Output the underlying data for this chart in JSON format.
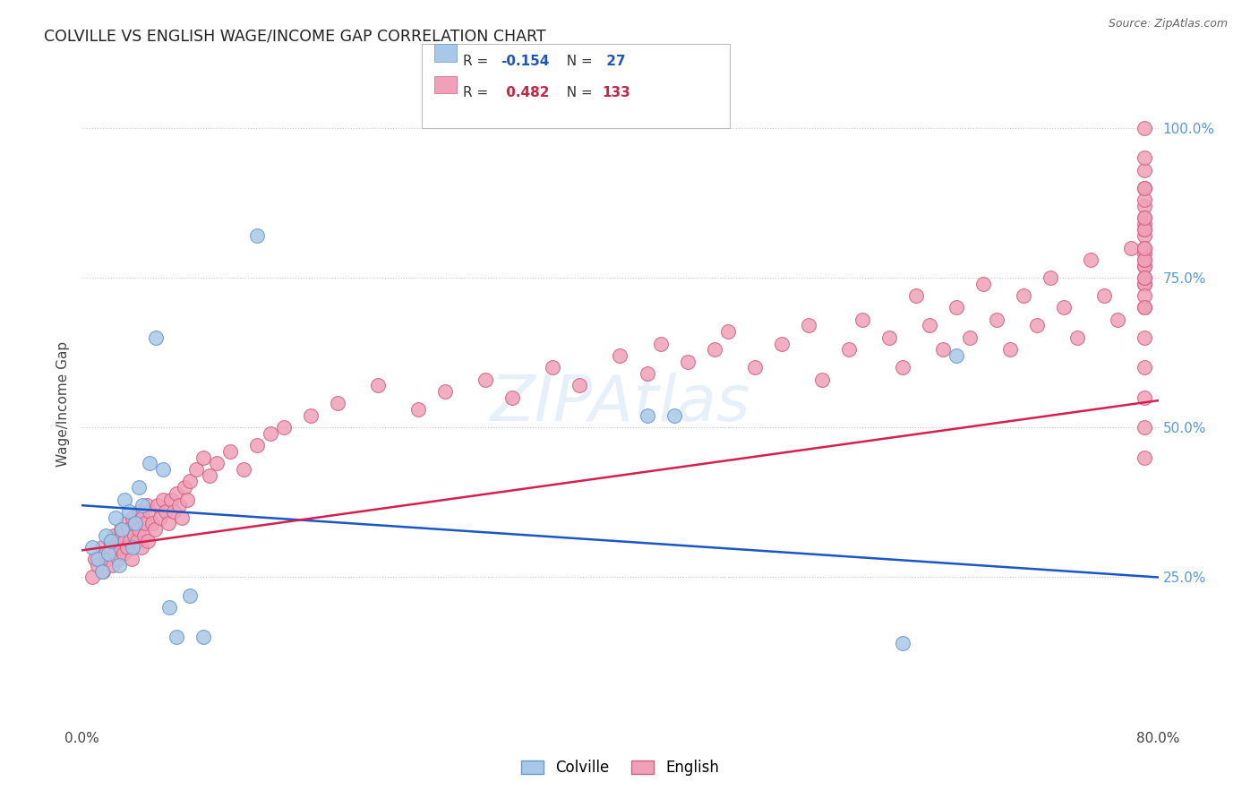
{
  "title": "COLVILLE VS ENGLISH WAGE/INCOME GAP CORRELATION CHART",
  "source": "Source: ZipAtlas.com",
  "ylabel": "Wage/Income Gap",
  "ytick_labels": [
    "25.0%",
    "50.0%",
    "75.0%",
    "100.0%"
  ],
  "ytick_values": [
    0.25,
    0.5,
    0.75,
    1.0
  ],
  "xlim": [
    0.0,
    0.8
  ],
  "ylim": [
    0.0,
    1.08
  ],
  "colville_color": "#a8c8e8",
  "colville_edge": "#6898c8",
  "english_color": "#f0a0b8",
  "english_edge": "#d06080",
  "line_blue": "#1a56c4",
  "line_pink": "#d42050",
  "background": "#ffffff",
  "grid_color": "#c8c8c8",
  "ytick_color": "#5599dd",
  "colville_x": [
    0.008,
    0.012,
    0.015,
    0.018,
    0.02,
    0.022,
    0.025,
    0.028,
    0.03,
    0.032,
    0.035,
    0.038,
    0.04,
    0.042,
    0.045,
    0.05,
    0.055,
    0.06,
    0.065,
    0.07,
    0.08,
    0.09,
    0.13,
    0.42,
    0.44,
    0.61,
    0.65
  ],
  "colville_y": [
    0.3,
    0.28,
    0.26,
    0.32,
    0.29,
    0.31,
    0.35,
    0.27,
    0.33,
    0.38,
    0.36,
    0.3,
    0.34,
    0.4,
    0.37,
    0.44,
    0.65,
    0.43,
    0.2,
    0.15,
    0.22,
    0.15,
    0.82,
    0.52,
    0.52,
    0.14,
    0.62
  ],
  "english_x": [
    0.008,
    0.01,
    0.012,
    0.015,
    0.016,
    0.018,
    0.02,
    0.021,
    0.022,
    0.023,
    0.024,
    0.025,
    0.026,
    0.027,
    0.028,
    0.029,
    0.03,
    0.031,
    0.032,
    0.033,
    0.034,
    0.035,
    0.036,
    0.037,
    0.038,
    0.039,
    0.04,
    0.041,
    0.042,
    0.043,
    0.044,
    0.045,
    0.046,
    0.047,
    0.048,
    0.049,
    0.05,
    0.052,
    0.054,
    0.056,
    0.058,
    0.06,
    0.062,
    0.064,
    0.066,
    0.068,
    0.07,
    0.072,
    0.074,
    0.076,
    0.078,
    0.08,
    0.085,
    0.09,
    0.095,
    0.1,
    0.11,
    0.12,
    0.13,
    0.14,
    0.15,
    0.17,
    0.19,
    0.22,
    0.25,
    0.27,
    0.3,
    0.32,
    0.35,
    0.37,
    0.4,
    0.42,
    0.43,
    0.45,
    0.47,
    0.48,
    0.5,
    0.52,
    0.54,
    0.55,
    0.57,
    0.58,
    0.6,
    0.61,
    0.62,
    0.63,
    0.64,
    0.65,
    0.66,
    0.67,
    0.68,
    0.69,
    0.7,
    0.71,
    0.72,
    0.73,
    0.74,
    0.75,
    0.76,
    0.77,
    0.78,
    0.79,
    0.79,
    0.79,
    0.79,
    0.79,
    0.79,
    0.79,
    0.79,
    0.79,
    0.79,
    0.79,
    0.79,
    0.79,
    0.79,
    0.79,
    0.79,
    0.79,
    0.79,
    0.79,
    0.79,
    0.79,
    0.79,
    0.79,
    0.79,
    0.79,
    0.79,
    0.79,
    0.79,
    0.79,
    0.79,
    0.79,
    0.79
  ],
  "english_y": [
    0.25,
    0.28,
    0.27,
    0.3,
    0.26,
    0.29,
    0.28,
    0.31,
    0.3,
    0.27,
    0.32,
    0.29,
    0.31,
    0.28,
    0.3,
    0.33,
    0.32,
    0.29,
    0.31,
    0.34,
    0.3,
    0.33,
    0.31,
    0.28,
    0.35,
    0.32,
    0.34,
    0.31,
    0.33,
    0.36,
    0.3,
    0.35,
    0.32,
    0.34,
    0.37,
    0.31,
    0.36,
    0.34,
    0.33,
    0.37,
    0.35,
    0.38,
    0.36,
    0.34,
    0.38,
    0.36,
    0.39,
    0.37,
    0.35,
    0.4,
    0.38,
    0.41,
    0.43,
    0.45,
    0.42,
    0.44,
    0.46,
    0.43,
    0.47,
    0.49,
    0.5,
    0.52,
    0.54,
    0.57,
    0.53,
    0.56,
    0.58,
    0.55,
    0.6,
    0.57,
    0.62,
    0.59,
    0.64,
    0.61,
    0.63,
    0.66,
    0.6,
    0.64,
    0.67,
    0.58,
    0.63,
    0.68,
    0.65,
    0.6,
    0.72,
    0.67,
    0.63,
    0.7,
    0.65,
    0.74,
    0.68,
    0.63,
    0.72,
    0.67,
    0.75,
    0.7,
    0.65,
    0.78,
    0.72,
    0.68,
    0.8,
    0.74,
    0.7,
    0.77,
    0.84,
    0.79,
    0.74,
    0.82,
    0.77,
    0.72,
    0.87,
    0.83,
    0.78,
    0.9,
    0.85,
    0.8,
    0.75,
    0.93,
    0.88,
    0.83,
    0.78,
    1.0,
    0.95,
    0.9,
    0.85,
    0.8,
    0.75,
    0.7,
    0.65,
    0.6,
    0.55,
    0.5,
    0.45
  ],
  "blue_line_x": [
    0.0,
    0.8
  ],
  "blue_line_y": [
    0.37,
    0.25
  ],
  "pink_line_x": [
    0.0,
    0.8
  ],
  "pink_line_y": [
    0.295,
    0.545
  ]
}
